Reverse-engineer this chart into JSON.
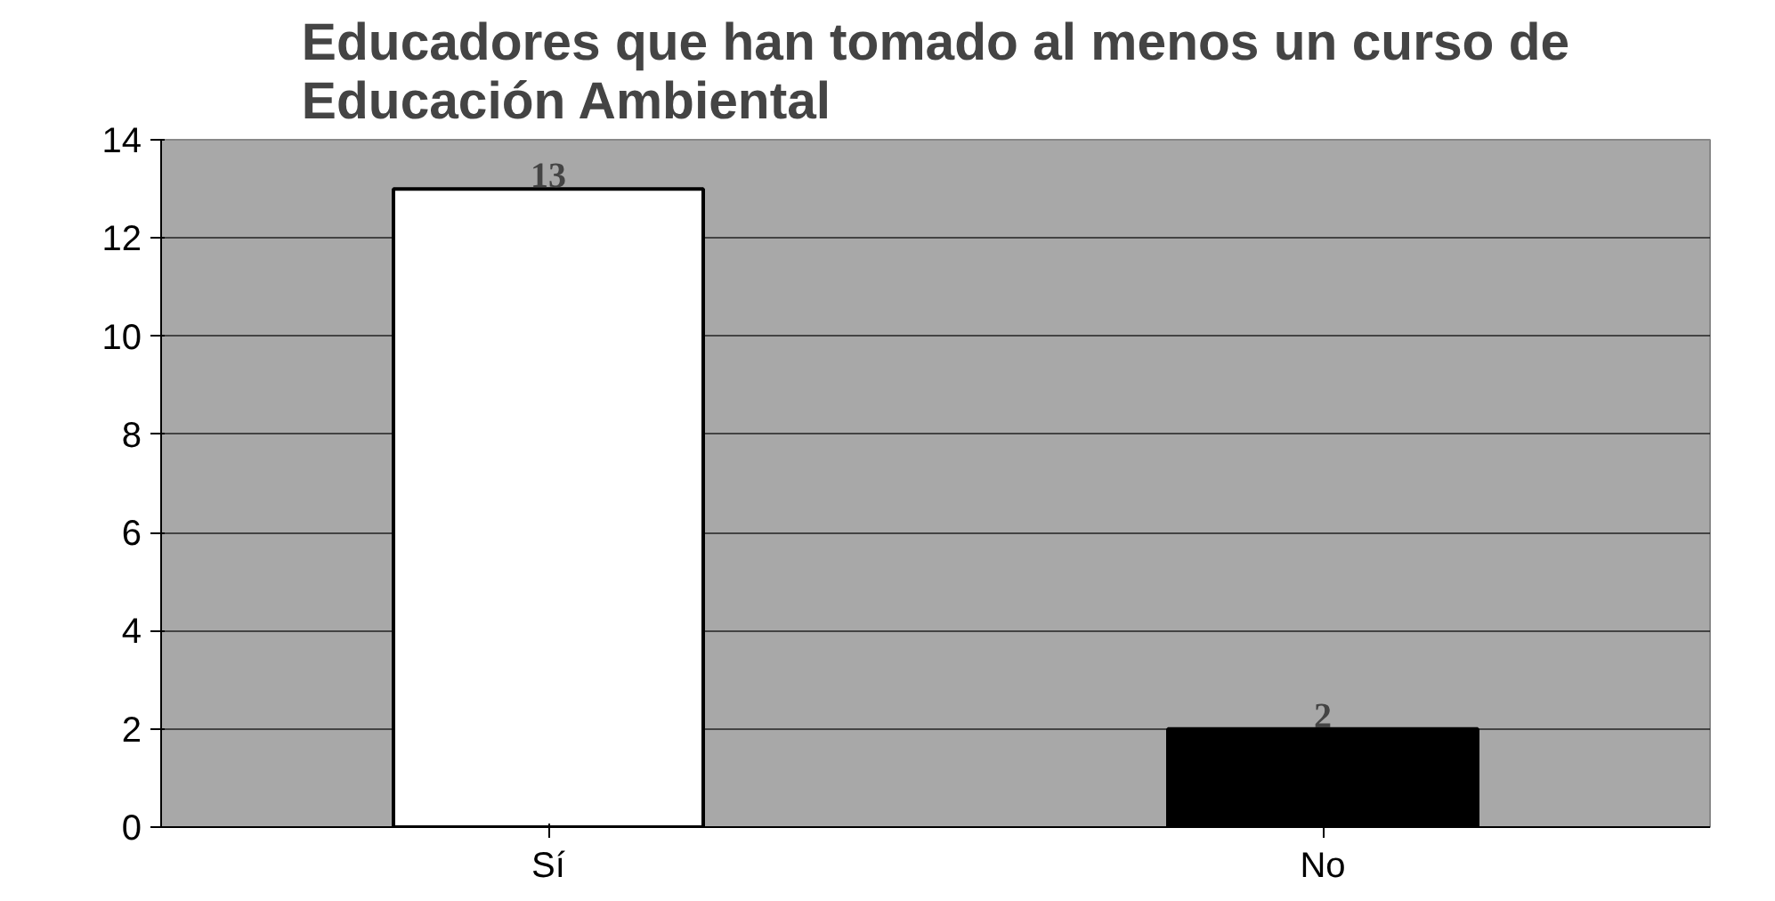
{
  "chart_data": {
    "type": "bar",
    "title": "Educadores que han tomado al menos un curso de Educación Ambiental",
    "categories": [
      "Sí",
      "No"
    ],
    "values": [
      13,
      2
    ],
    "colors": [
      "#ffffff",
      "#000000"
    ],
    "ylim": [
      0,
      14
    ],
    "yticks": [
      0,
      2,
      4,
      6,
      8,
      10,
      12,
      14
    ],
    "grid": "y",
    "data_labels": true
  }
}
